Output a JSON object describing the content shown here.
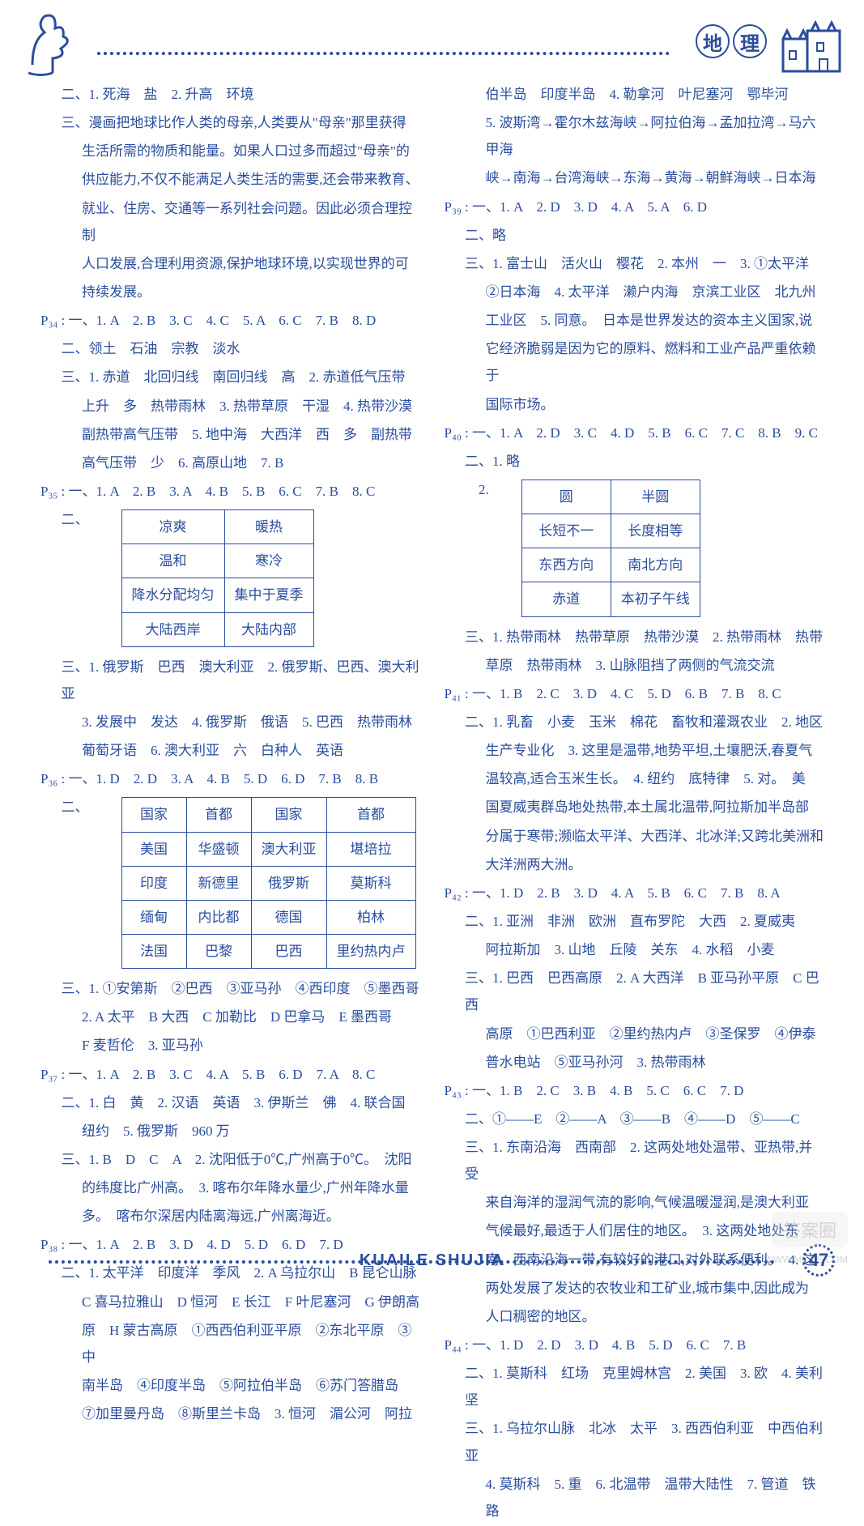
{
  "header": {
    "subject_chars": [
      "地",
      "理"
    ]
  },
  "left": {
    "l1": "二、1. 死海　盐　2. 升高　环境",
    "l2": "三、漫画把地球比作人类的母亲,人类要从\"母亲\"那里获得",
    "l3": "生活所需的物质和能量。如果人口过多而超过\"母亲\"的",
    "l4": "供应能力,不仅不能满足人类生活的需要,还会带来教育、",
    "l5": "就业、住房、交通等一系列社会问题。因此必须合理控制",
    "l6": "人口发展,合理利用资源,保护地球环境,以实现世界的可",
    "l7": "持续发展。",
    "p34a": "P₃₄ : 一、1. A　2. B　3. C　4. C　5. A　6. C　7. B　8. D",
    "p34b": "二、领土　石油　宗教　淡水",
    "p34c": "三、1. 赤道　北回归线　南回归线　高　2. 赤道低气压带",
    "p34d": "上升　多　热带雨林　3. 热带草原　干湿　4. 热带沙漠",
    "p34e": "副热带高气压带　5. 地中海　大西洋　西　多　副热带",
    "p34f": "高气压带　少　6. 高原山地　7. B",
    "p35a": "P₃₅ : 一、1. A　2. B　3. A　4. B　5. B　6. C　7. B　8. C",
    "p35t_label": "二、",
    "p35_table": {
      "rows": [
        [
          "凉爽",
          "暖热"
        ],
        [
          "温和",
          "寒冷"
        ],
        [
          "降水分配均匀",
          "集中于夏季"
        ],
        [
          "大陆西岸",
          "大陆内部"
        ]
      ]
    },
    "p35c": "三、1. 俄罗斯　巴西　澳大利亚　2. 俄罗斯、巴西、澳大利亚",
    "p35d": "3. 发展中　发达　4. 俄罗斯　俄语　5. 巴西　热带雨林",
    "p35e": "葡萄牙语　6. 澳大利亚　六　白种人　英语",
    "p36a": "P₃₆ : 一、1. D　2. D　3. A　4. B　5. D　6. D　7. B　8. B",
    "p36t_label": "二、",
    "p36_table": {
      "rows": [
        [
          "国家",
          "首都",
          "国家",
          "首都"
        ],
        [
          "美国",
          "华盛顿",
          "澳大利亚",
          "堪培拉"
        ],
        [
          "印度",
          "新德里",
          "俄罗斯",
          "莫斯科"
        ],
        [
          "缅甸",
          "内比都",
          "德国",
          "柏林"
        ],
        [
          "法国",
          "巴黎",
          "巴西",
          "里约热内卢"
        ]
      ]
    },
    "p36c": "三、1. ①安第斯　②巴西　③亚马孙　④西印度　⑤墨西哥",
    "p36d": "2. A 太平　B 大西　C 加勒比　D 巴拿马　E 墨西哥",
    "p36e": "F 麦哲伦　3. 亚马孙",
    "p37a": "P₃₇ : 一、1. A　2. B　3. C　4. A　5. B　6. D　7. A　8. C",
    "p37b": "二、1. 白　黄　2. 汉语　英语　3. 伊斯兰　佛　4. 联合国",
    "p37c": "纽约　5. 俄罗斯　960 万",
    "p37d": "三、1. B　D　C　A　2. 沈阳低于0℃,广州高于0℃。　沈阳",
    "p37e": "的纬度比广州高。　3. 喀布尔年降水量少,广州年降水量",
    "p37f": "多。　喀布尔深居内陆离海远,广州离海近。",
    "p38a": "P₃₈ : 一、1. A　2. B　3. D　4. D　5. D　6. D　7. D",
    "p38b": "二、1. 太平洋　印度洋　季风　2. A 乌拉尔山　B 昆仑山脉",
    "p38c": "C 喜马拉雅山　D 恒河　E 长江　F 叶尼塞河　G 伊朗高",
    "p38d": "原　H 蒙古高原　①西西伯利亚平原　②东北平原　③中",
    "p38e": "南半岛　④印度半岛　⑤阿拉伯半岛　⑥苏门答腊岛",
    "p38f": "⑦加里曼丹岛　⑧斯里兰卡岛　3. 恒河　湄公河　阿拉"
  },
  "right": {
    "r1": "伯半岛　印度半岛　4. 勒拿河　叶尼塞河　鄂毕河",
    "r2": "5. 波斯湾→霍尔木兹海峡→阿拉伯海→孟加拉湾→马六甲海",
    "r3": "峡→南海→台湾海峡→东海→黄海→朝鲜海峡→日本海",
    "p39a": "P₃₉ : 一、1. A　2. D　3. D　4. A　5. A　6. D",
    "p39b": "二、略",
    "p39c": "三、1. 富士山　活火山　樱花　2. 本州　一　3. ①太平洋",
    "p39d": "②日本海　4. 太平洋　濑户内海　京滨工业区　北九州",
    "p39e": "工业区　5. 同意。　日本是世界发达的资本主义国家,说",
    "p39f": "它经济脆弱是因为它的原料、燃料和工业产品严重依赖于",
    "p39g": "国际市场。",
    "p40a": "P₄₀ : 一、1. A　2. D　3. C　4. D　5. B　6. C　7. C　8. B　9. C",
    "p40b": "二、1. 略",
    "p40t_label": "2.",
    "p40_table": {
      "rows": [
        [
          "圆",
          "半圆"
        ],
        [
          "长短不一",
          "长度相等"
        ],
        [
          "东西方向",
          "南北方向"
        ],
        [
          "赤道",
          "本初子午线"
        ]
      ]
    },
    "p40c": "三、1. 热带雨林　热带草原　热带沙漠　2. 热带雨林　热带",
    "p40d": "草原　热带雨林　3. 山脉阻挡了两侧的气流交流",
    "p41a": "P₄₁ : 一、1. B　2. C　3. D　4. C　5. D　6. B　7. B　8. C",
    "p41b": "二、1. 乳畜　小麦　玉米　棉花　畜牧和灌溉农业　2. 地区",
    "p41c": "生产专业化　3. 这里是温带,地势平坦,土壤肥沃,春夏气",
    "p41d": "温较高,适合玉米生长。　4. 纽约　底特律　5. 对。　美",
    "p41e": "国夏威夷群岛地处热带,本土属北温带,阿拉斯加半岛部",
    "p41f": "分属于寒带;濒临太平洋、大西洋、北冰洋;又跨北美洲和",
    "p41g": "大洋洲两大洲。",
    "p42a": "P₄₂ : 一、1. D　2. B　3. D　4. A　5. B　6. C　7. B　8. A",
    "p42b": "二、1. 亚洲　非洲　欧洲　直布罗陀　大西　2. 夏威夷",
    "p42c": "阿拉斯加　3. 山地　丘陵　关东　4. 水稻　小麦",
    "p42d": "三、1. 巴西　巴西高原　2. A 大西洋　B 亚马孙平原　C 巴西",
    "p42e": "高原　①巴西利亚　②里约热内卢　③圣保罗　④伊泰",
    "p42f": "普水电站　⑤亚马孙河　3. 热带雨林",
    "p43a": "P₄₃ : 一、1. B　2. C　3. B　4. B　5. C　6. C　7. D",
    "p43b": "二、①——E　②——A　③——B　④——D　⑤——C",
    "p43c": "三、1. 东南沿海　西南部　2. 这两处地处温带、亚热带,并受",
    "p43d": "来自海洋的湿润气流的影响,气候温暖湿润,是澳大利亚",
    "p43e": "气候最好,最适于人们居住的地区。　3. 这两处地处东",
    "p43f": "南、西南沿海一带,有较好的港口,对外联系便利。　4. 这",
    "p43g": "两处发展了发达的农牧业和工矿业,城市集中,因此成为",
    "p43h": "人口稠密的地区。",
    "p44a": "P₄₄ : 一、1. D　2. D　3. D　4. B　5. D　6. C　7. B",
    "p44b": "二、1. 莫斯科　红场　克里姆林宫　2. 美国　3. 欧　4. 美利坚",
    "p44c": "三、1. 乌拉尔山脉　北冰　太平　3. 西西伯利亚　中西伯利亚",
    "p44d": "4. 莫斯科　5. 重　6. 北温带　温带大陆性　7. 管道　铁路"
  },
  "footer": {
    "brand": "KUAILE SHUJIA",
    "page": "47",
    "watermark": "答案圈",
    "wm_url": "WWW.MXQE.COM"
  }
}
